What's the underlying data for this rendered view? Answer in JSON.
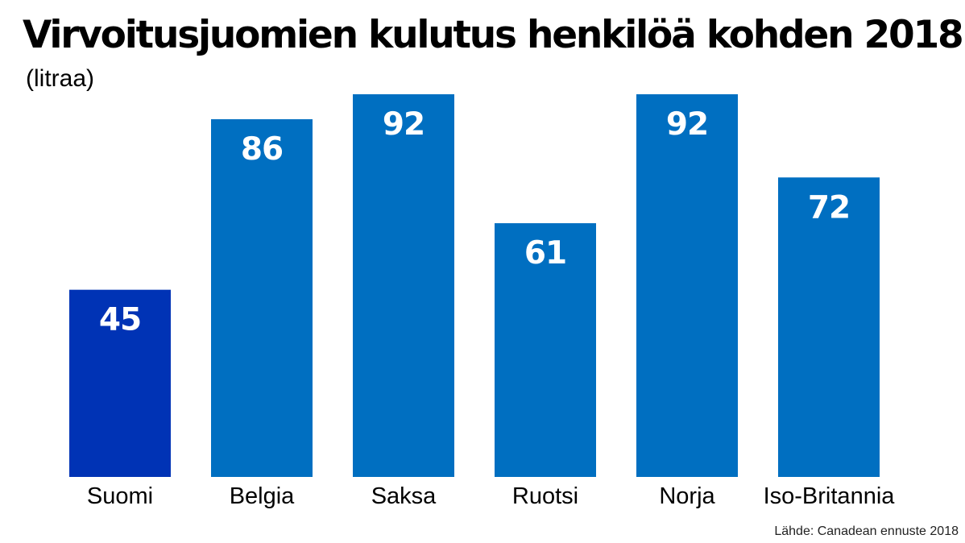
{
  "chart_data": {
    "type": "bar",
    "title": "Virvoitusjuomien kulutus henkilöä kohden 2018",
    "subtitle": "(litraa)",
    "source": "Lähde: Canadean ennuste 2018",
    "categories": [
      "Suomi",
      "Belgia",
      "Saksa",
      "Ruotsi",
      "Norja",
      "Iso-Britannia"
    ],
    "values": [
      45,
      86,
      92,
      61,
      92,
      72
    ],
    "ylim": [
      0,
      92
    ],
    "grid": false,
    "legend": "none",
    "colors": {
      "highlight": "#0033b5",
      "bar": "#006fc1",
      "value_text": "#ffffff",
      "label_text": "#000000"
    },
    "highlight_index": 0
  }
}
